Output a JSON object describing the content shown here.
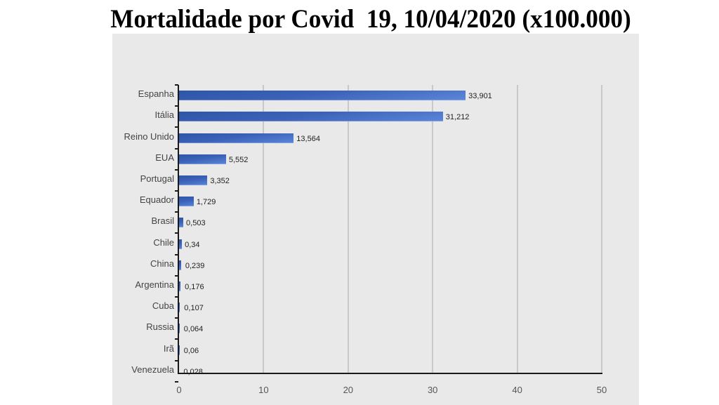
{
  "title": "Mortalidade por Covid  19, 10/04/2020 (x100.000)",
  "colors": {
    "bar": "#3b62b8",
    "panel": "#e9e9e9",
    "grid": "#c8c8c8",
    "axis": "#1a1a1a"
  },
  "chart_data": {
    "type": "bar",
    "orientation": "horizontal",
    "title": "Mortalidade por Covid  19, 10/04/2020 (x100.000)",
    "xlabel": "",
    "ylabel": "",
    "xlim": [
      0,
      50
    ],
    "xticks": [
      "0",
      "10",
      "20",
      "30",
      "40",
      "50"
    ],
    "grid": true,
    "legend": null,
    "categories": [
      "Espanha",
      "Itália",
      "Reino Unido",
      "EUA",
      "Portugal",
      "Equador",
      "Brasil",
      "Chile",
      "China",
      "Argentina",
      "Cuba",
      "Russia",
      "Irã",
      "Venezuela"
    ],
    "values": [
      33.901,
      31.212,
      13.564,
      5.552,
      3.352,
      1.729,
      0.503,
      0.34,
      0.239,
      0.176,
      0.107,
      0.064,
      0.06,
      0.028
    ],
    "value_labels": [
      "33,901",
      "31,212",
      "13,564",
      "5,552",
      "3,352",
      "1,729",
      "0,503",
      "0,34",
      "0,239",
      "0,176",
      "0,107",
      "0,064",
      "0,06",
      "0,028"
    ]
  }
}
